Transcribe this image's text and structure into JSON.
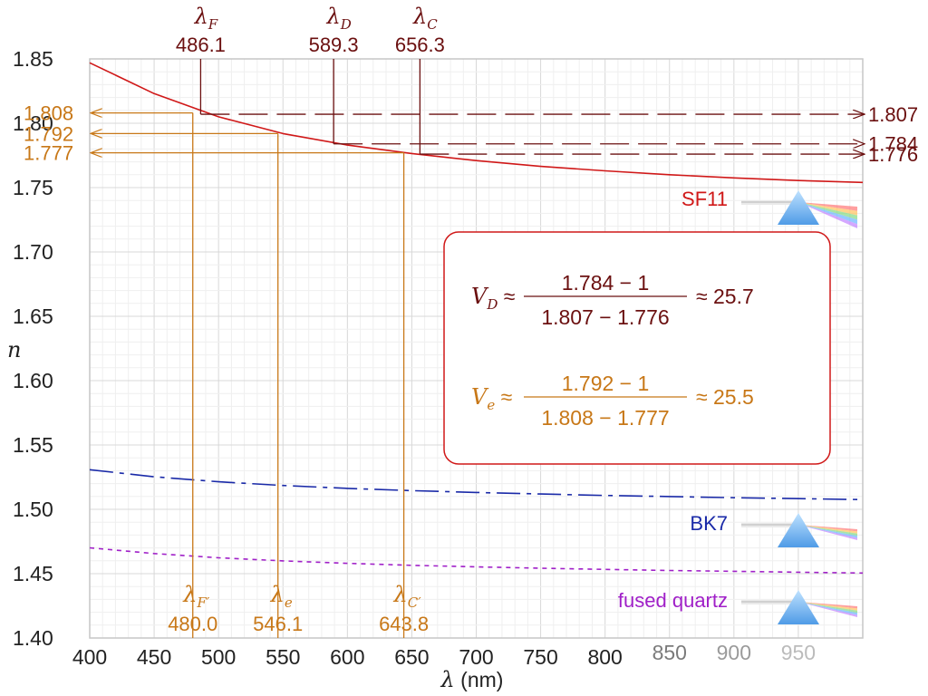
{
  "chart_data": {
    "type": "line",
    "xlabel": "λ (nm)",
    "ylabel": "n",
    "xlim": [
      400,
      1000
    ],
    "ylim": [
      1.4,
      1.85
    ],
    "xticks": [
      "400",
      "450",
      "500",
      "550",
      "600",
      "650",
      "700",
      "750",
      "800"
    ],
    "yticks": [
      "1.85",
      "1.80",
      "1.75",
      "1.70",
      "1.65",
      "1.60",
      "1.55",
      "1.50",
      "1.45",
      "1.40"
    ],
    "grid": true,
    "series": [
      {
        "name": "SF11",
        "color": "#d01818",
        "style": "solid",
        "x": [
          400,
          450,
          500,
          550,
          600,
          650,
          700,
          750,
          800,
          850,
          900,
          950,
          1000
        ],
        "y": [
          1.847,
          1.823,
          1.805,
          1.792,
          1.783,
          1.7765,
          1.771,
          1.7665,
          1.763,
          1.76,
          1.7575,
          1.7555,
          1.754
        ]
      },
      {
        "name": "BK7",
        "color": "#1a2aa8",
        "style": "dashdot",
        "x": [
          400,
          450,
          500,
          550,
          600,
          650,
          700,
          750,
          800,
          850,
          900,
          950,
          1000
        ],
        "y": [
          1.5308,
          1.5253,
          1.5214,
          1.5185,
          1.5163,
          1.5145,
          1.5131,
          1.5119,
          1.5108,
          1.5099,
          1.509,
          1.5083,
          1.5075
        ]
      },
      {
        "name": "fused quartz",
        "color": "#a020c8",
        "style": "dashed",
        "x": [
          400,
          450,
          500,
          550,
          600,
          650,
          700,
          750,
          800,
          850,
          900,
          950,
          1000
        ],
        "y": [
          1.4701,
          1.4656,
          1.4623,
          1.4599,
          1.458,
          1.4565,
          1.4553,
          1.4542,
          1.4533,
          1.4525,
          1.4518,
          1.4511,
          1.4505
        ]
      }
    ],
    "fraunhofer_lines": [
      {
        "symbol": "λ",
        "sub": "F",
        "wavelength": 486.1,
        "label": "486.1",
        "n": 1.807,
        "n_label": "1.807"
      },
      {
        "symbol": "λ",
        "sub": "D",
        "wavelength": 589.3,
        "label": "589.3",
        "n": 1.784,
        "n_label": "1.784"
      },
      {
        "symbol": "λ",
        "sub": "C",
        "wavelength": 656.3,
        "label": "656.3",
        "n": 1.776,
        "n_label": "1.776"
      }
    ],
    "alt_lines": [
      {
        "symbol": "λ",
        "sub": "F′",
        "wavelength": 480.0,
        "label": "480.0",
        "n": 1.808,
        "n_label": "1.808"
      },
      {
        "symbol": "λ",
        "sub": "e",
        "wavelength": 546.1,
        "label": "546.1",
        "n": 1.792,
        "n_label": "1.792"
      },
      {
        "symbol": "λ",
        "sub": "C′",
        "wavelength": 643.8,
        "label": "643.8",
        "n": 1.777,
        "n_label": "1.777"
      }
    ],
    "formulas": [
      {
        "symbol": "V",
        "sub": "D",
        "approx": "≈",
        "numerator": "1.784 − 1",
        "denominator": "1.807 − 1.776",
        "result": "≈ 25.7",
        "color": "#6b1010"
      },
      {
        "symbol": "V",
        "sub": "e",
        "approx": "≈",
        "numerator": "1.792 − 1",
        "denominator": "1.808 − 1.777",
        "result": "≈ 25.5",
        "color": "#c87818"
      }
    ],
    "colors": {
      "dark_red": "#6b1010",
      "orange": "#c87818",
      "grid_major": "#d8d8d8",
      "grid_minor": "#efefef",
      "frame": "#c6c6c6",
      "box": "#d01818"
    }
  }
}
